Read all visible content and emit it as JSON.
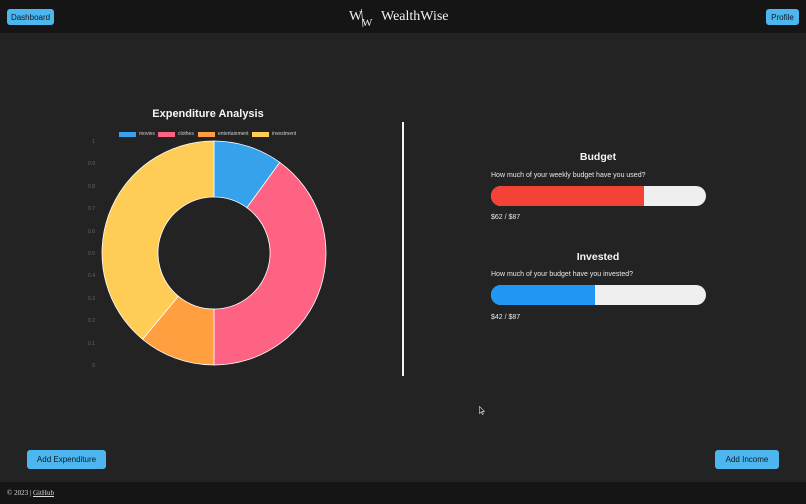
{
  "header": {
    "dashboard_label": "Dashboard",
    "brand_name": "WealthWise",
    "profile_label": "Profile"
  },
  "chart_data": {
    "type": "pie",
    "title": "Expenditure Analysis",
    "categories": [
      "movies",
      "clothes",
      "entertainment",
      "investment"
    ],
    "values": [
      10,
      40,
      11,
      39
    ],
    "colors": [
      "#36a2eb",
      "#ff6384",
      "#ff9f40",
      "#ffcd56"
    ],
    "y_ticks": [
      "1",
      "0.9",
      "0.8",
      "0.7",
      "0.6",
      "0.5",
      "0.4",
      "0.3",
      "0.2",
      "0.1",
      "0"
    ],
    "grid": false,
    "legend_position": "top"
  },
  "budget": {
    "title": "Budget",
    "question": "How much of your weekly budget have you used?",
    "used": 62,
    "total": 87,
    "amount_text": "$62 / $87",
    "color": "#f44336"
  },
  "invested": {
    "title": "Invested",
    "question": "How much of your budget have you invested?",
    "used": 42,
    "total": 87,
    "amount_text": "$42 / $87",
    "color": "#2196f3"
  },
  "actions": {
    "add_expenditure": "Add Expenditure",
    "add_income": "Add Income"
  },
  "footer": {
    "copyright": "© 2023 |",
    "github": "GitHub"
  }
}
